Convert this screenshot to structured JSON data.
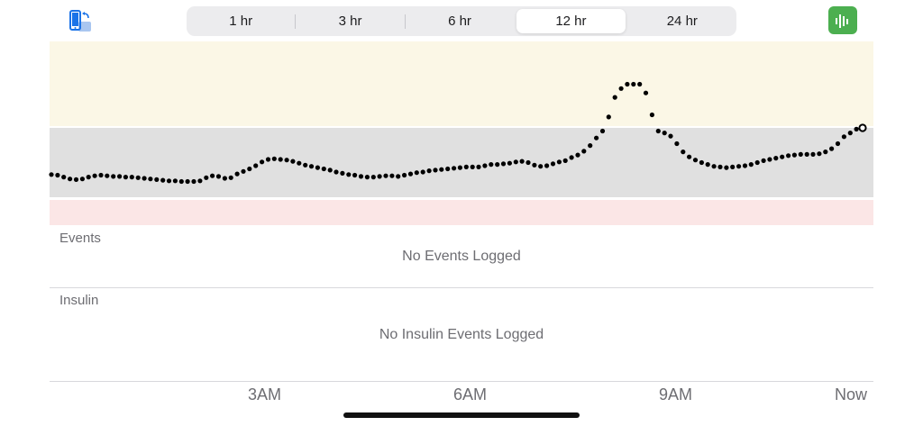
{
  "toolbar": {
    "ranges": [
      "1 hr",
      "3 hr",
      "6 hr",
      "12 hr",
      "24 hr"
    ],
    "selected": "12 hr",
    "left_icon": "phone-sync-icon",
    "right_icon": "stats-chart-icon",
    "accent_green": "#4caf50",
    "accent_blue": "#1a73e8"
  },
  "sections": {
    "events_label": "Events",
    "events_empty": "No Events Logged",
    "insulin_label": "Insulin",
    "insulin_empty": "No Insulin Events Logged"
  },
  "chart_data": {
    "type": "scatter",
    "x_ticks": [
      "3AM",
      "6AM",
      "9AM",
      "Now"
    ],
    "ylim": [
      40,
      300
    ],
    "target_range": [
      70,
      180
    ],
    "zones": {
      "high_color": "#fbf7e6",
      "in_range_color": "#e0e0e0",
      "low_color": "#fbe6e6"
    },
    "series": [
      {
        "values": [
          106,
          105,
          102,
          99,
          98,
          99,
          102,
          104,
          105,
          104,
          103,
          103,
          102,
          102,
          101,
          100,
          99,
          98,
          97,
          96,
          96,
          95,
          95,
          95,
          96,
          101,
          104,
          103,
          100,
          101,
          107,
          111,
          115,
          120,
          126,
          130,
          131,
          130,
          129,
          127,
          124,
          121,
          119,
          117,
          115,
          113,
          110,
          108,
          106,
          105,
          103,
          102,
          102,
          103,
          104,
          104,
          103,
          105,
          107,
          109,
          110,
          112,
          113,
          114,
          115,
          116,
          117,
          118,
          118,
          118,
          120,
          122,
          122,
          123,
          124,
          126,
          127,
          125,
          121,
          119,
          120,
          123,
          126,
          128,
          133,
          137,
          143,
          152,
          164,
          175,
          185,
          194,
          198,
          200,
          200,
          200,
          196,
          186,
          175,
          172,
          167,
          155,
          142,
          134,
          129,
          125,
          122,
          119,
          118,
          117,
          118,
          119,
          120,
          122,
          125,
          128,
          130,
          132,
          134,
          136,
          137,
          138,
          138,
          138,
          139,
          142,
          147,
          155,
          166,
          172,
          178,
          180
        ]
      }
    ]
  }
}
